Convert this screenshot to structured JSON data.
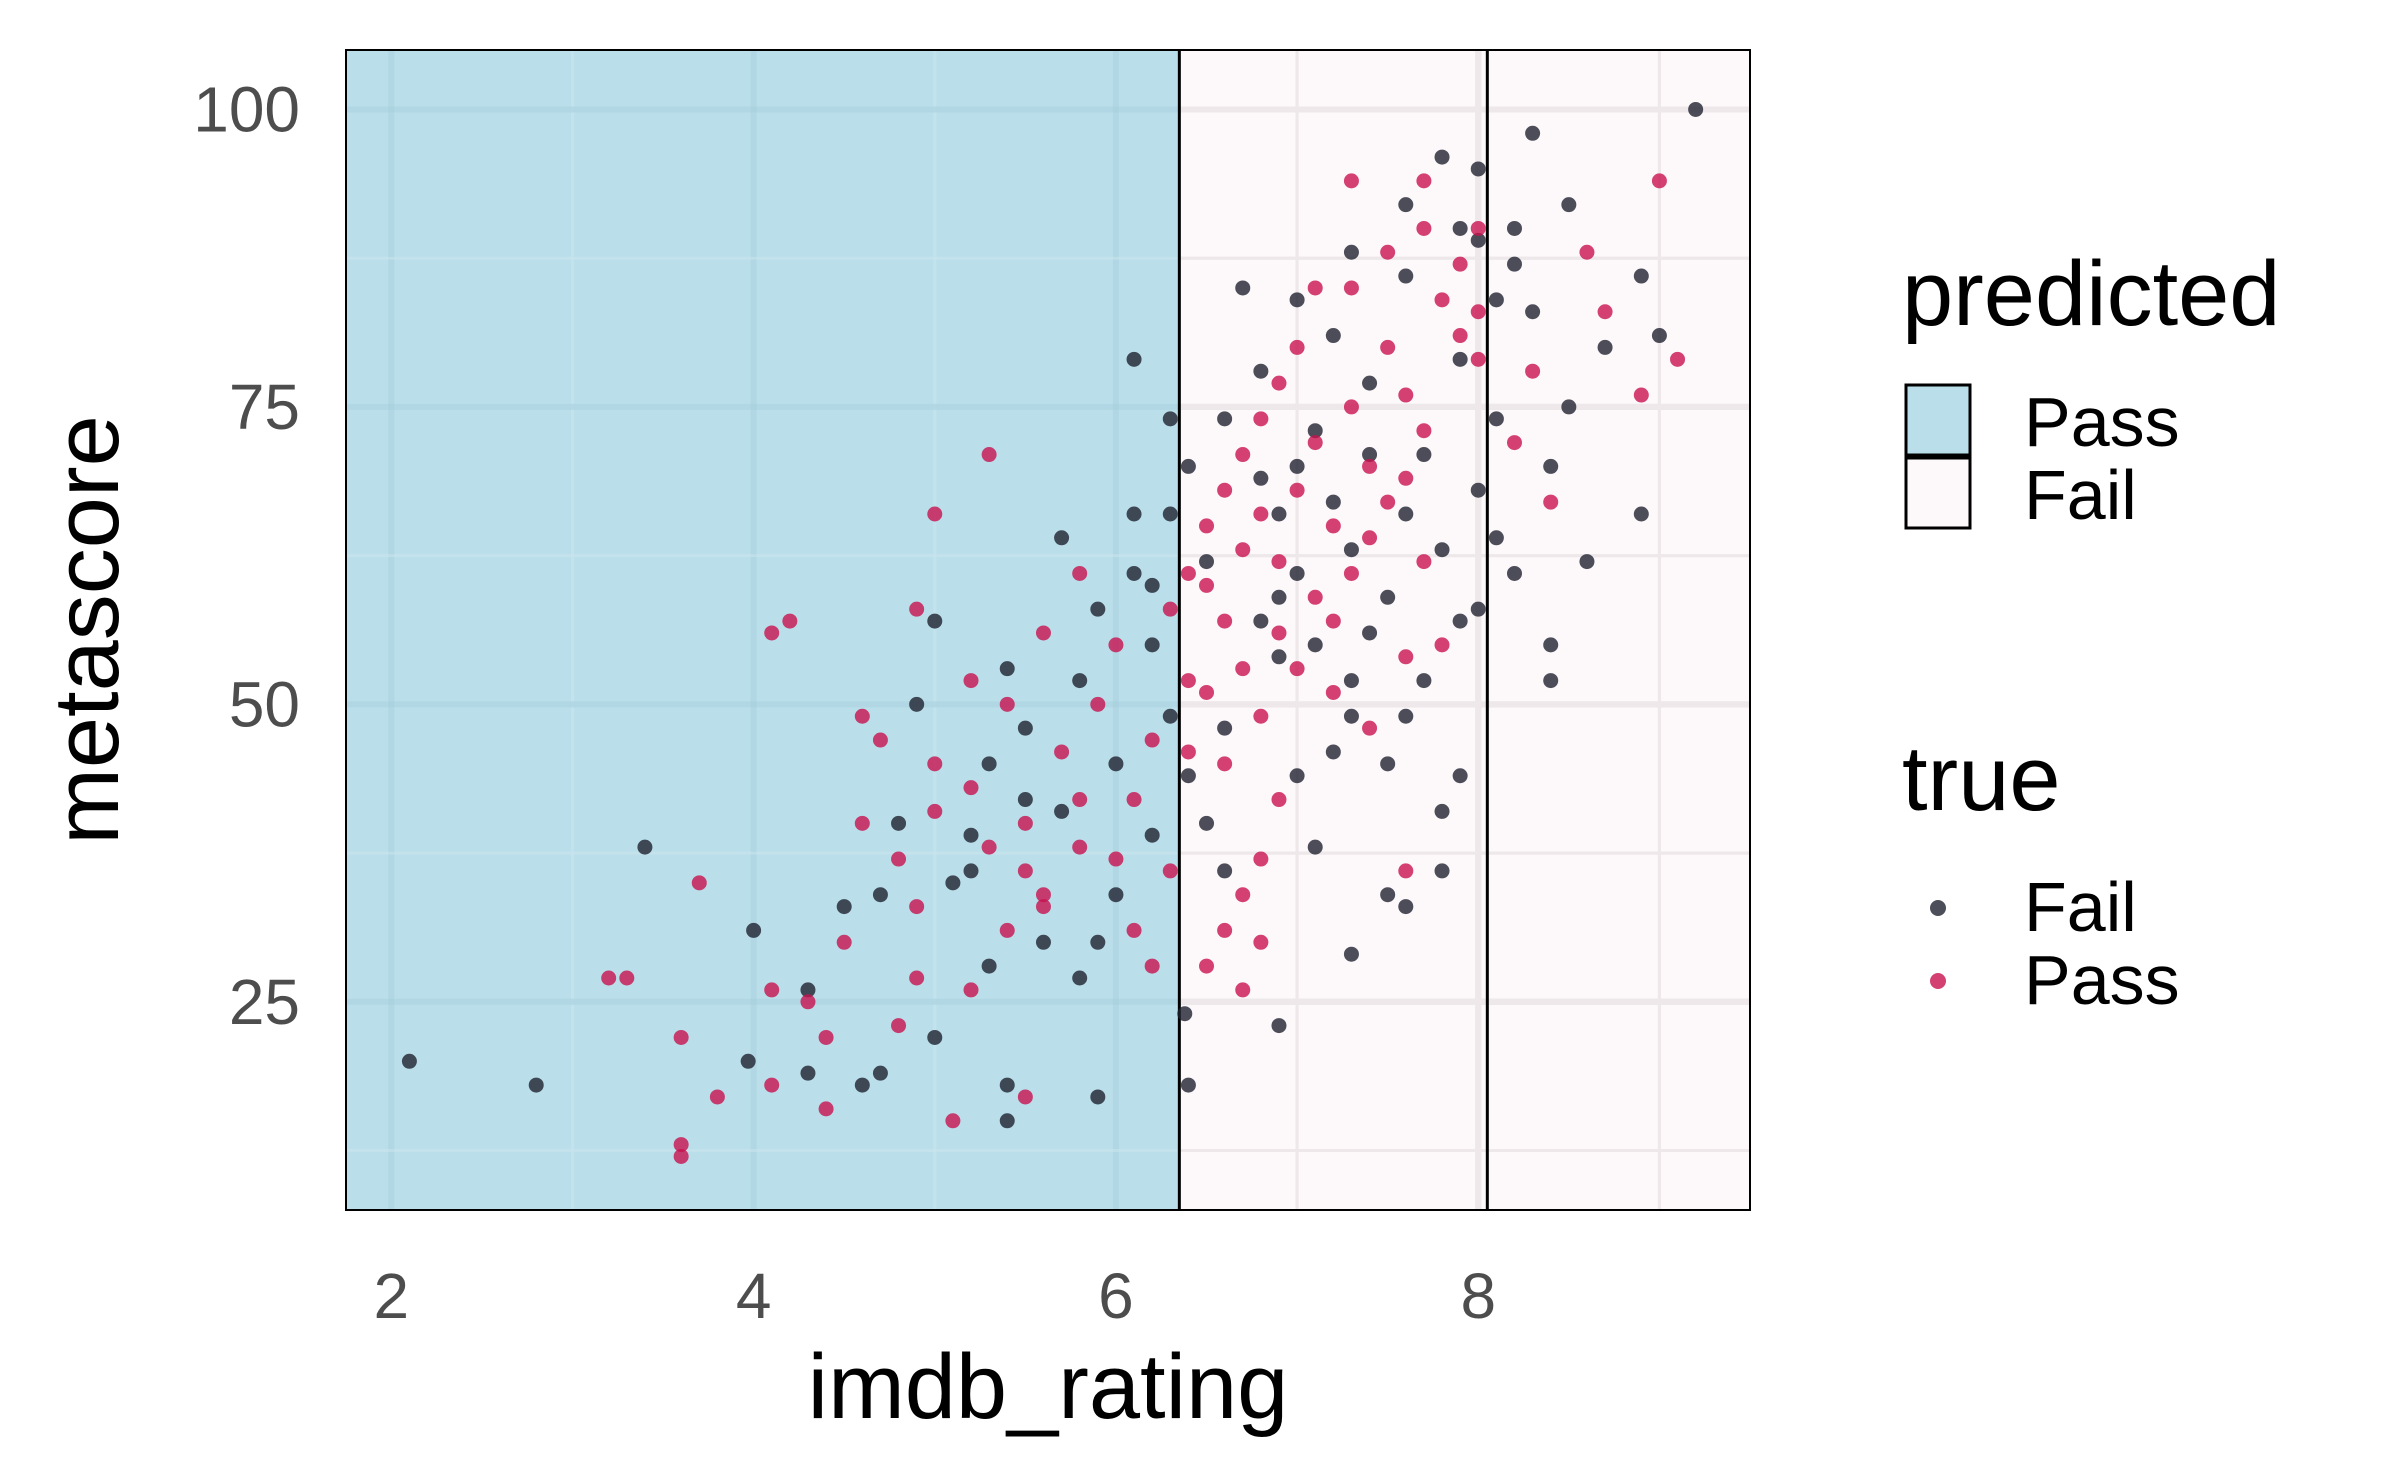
{
  "chart_data": {
    "type": "scatter",
    "xlabel": "imdb_rating",
    "ylabel": "metascore",
    "xlim": [
      1.75,
      9.5
    ],
    "ylim": [
      7.5,
      105
    ],
    "xticks": [
      2,
      4,
      6,
      8
    ],
    "yticks": [
      25,
      50,
      75,
      100
    ],
    "grid": true,
    "legend_position": "right",
    "thresholds": [
      6.35,
      8.05
    ],
    "regions": [
      {
        "label": "Pass",
        "x_from": 1.75,
        "x_to": 6.35,
        "color": "#badfeb"
      },
      {
        "label": "Fail",
        "x_from": 6.35,
        "x_to": 9.5,
        "color": "#fdf8f9"
      }
    ],
    "legend_predicted": {
      "title": "predicted",
      "items": [
        {
          "label": "Pass",
          "color": "#badfeb"
        },
        {
          "label": "Fail",
          "color": "#fdf8f9"
        }
      ]
    },
    "legend_true": {
      "title": "true",
      "items": [
        {
          "label": "Fail",
          "color": "#1f2230"
        },
        {
          "label": "Pass",
          "color": "#c8114f"
        }
      ]
    },
    "series": [
      {
        "name": "Fail",
        "color": "#1f2230",
        "points": [
          [
            2.1,
            20
          ],
          [
            2.8,
            18
          ],
          [
            3.4,
            38
          ],
          [
            4.0,
            31
          ],
          [
            3.97,
            20
          ],
          [
            4.3,
            26
          ],
          [
            4.3,
            19
          ],
          [
            4.6,
            18
          ],
          [
            4.5,
            33
          ],
          [
            4.7,
            19
          ],
          [
            5.0,
            22
          ],
          [
            5.4,
            18
          ],
          [
            5.4,
            15
          ],
          [
            5.9,
            17
          ],
          [
            6.1,
            79
          ],
          [
            6.3,
            74
          ],
          [
            4.9,
            50
          ],
          [
            5.0,
            57
          ],
          [
            6.4,
            18
          ],
          [
            6.38,
            24
          ],
          [
            6.9,
            23
          ],
          [
            7.3,
            29
          ],
          [
            7.5,
            34
          ],
          [
            7.6,
            33
          ],
          [
            7.8,
            36
          ],
          [
            7.9,
            44
          ],
          [
            7.8,
            41
          ],
          [
            8.4,
            52
          ],
          [
            8.4,
            55
          ],
          [
            9.2,
            100
          ],
          [
            8.9,
            86
          ],
          [
            9.0,
            81
          ],
          [
            8.7,
            80
          ],
          [
            8.5,
            75
          ],
          [
            8.9,
            66
          ],
          [
            8.6,
            62
          ],
          [
            8.0,
            95
          ],
          [
            8.3,
            98
          ],
          [
            8.2,
            90
          ],
          [
            8.5,
            92
          ],
          [
            7.8,
            96
          ],
          [
            8.1,
            84
          ],
          [
            4.8,
            40
          ],
          [
            4.7,
            34
          ],
          [
            5.2,
            36
          ],
          [
            5.5,
            42
          ],
          [
            5.7,
            64
          ],
          [
            6.1,
            66
          ],
          [
            5.9,
            58
          ],
          [
            5.6,
            30
          ],
          [
            5.3,
            28
          ],
          [
            5.1,
            35
          ],
          [
            6.0,
            45
          ],
          [
            5.8,
            52
          ],
          [
            6.5,
            62
          ],
          [
            6.6,
            48
          ],
          [
            6.8,
            57
          ],
          [
            6.9,
            66
          ],
          [
            7.0,
            70
          ],
          [
            7.1,
            73
          ],
          [
            7.2,
            81
          ],
          [
            7.3,
            63
          ],
          [
            7.4,
            77
          ],
          [
            7.5,
            59
          ],
          [
            7.6,
            86
          ],
          [
            7.7,
            71
          ],
          [
            7.9,
            79
          ],
          [
            8.0,
            68
          ],
          [
            8.1,
            74
          ],
          [
            8.2,
            61
          ],
          [
            8.3,
            83
          ],
          [
            8.0,
            58
          ],
          [
            6.7,
            85
          ],
          [
            6.9,
            54
          ],
          [
            7.0,
            44
          ],
          [
            7.1,
            38
          ],
          [
            7.2,
            46
          ],
          [
            7.3,
            52
          ],
          [
            7.4,
            56
          ],
          [
            7.6,
            49
          ],
          [
            6.5,
            40
          ],
          [
            6.6,
            36
          ],
          [
            6.4,
            44
          ],
          [
            6.2,
            39
          ],
          [
            6.0,
            34
          ],
          [
            5.9,
            30
          ],
          [
            5.8,
            27
          ],
          [
            5.7,
            41
          ],
          [
            5.5,
            48
          ],
          [
            5.4,
            53
          ],
          [
            5.3,
            45
          ],
          [
            5.2,
            39
          ],
          [
            6.1,
            61
          ],
          [
            6.2,
            55
          ],
          [
            6.3,
            49
          ],
          [
            6.8,
            69
          ],
          [
            7.0,
            61
          ],
          [
            7.2,
            67
          ],
          [
            7.4,
            71
          ],
          [
            7.6,
            66
          ],
          [
            7.8,
            63
          ],
          [
            8.0,
            89
          ],
          [
            8.2,
            87
          ],
          [
            7.9,
            90
          ],
          [
            7.6,
            92
          ],
          [
            7.3,
            88
          ],
          [
            7.0,
            84
          ],
          [
            6.8,
            78
          ],
          [
            6.6,
            74
          ],
          [
            6.4,
            70
          ],
          [
            6.3,
            66
          ],
          [
            6.2,
            60
          ],
          [
            6.9,
            59
          ],
          [
            7.1,
            55
          ],
          [
            7.3,
            49
          ],
          [
            7.5,
            45
          ],
          [
            7.7,
            52
          ],
          [
            7.9,
            57
          ],
          [
            8.1,
            64
          ],
          [
            8.4,
            70
          ]
        ]
      },
      {
        "name": "Pass",
        "color": "#c8114f",
        "points": [
          [
            3.2,
            27
          ],
          [
            3.3,
            27
          ],
          [
            3.6,
            22
          ],
          [
            3.6,
            13
          ],
          [
            3.6,
            12
          ],
          [
            3.7,
            35
          ],
          [
            3.8,
            17
          ],
          [
            4.1,
            56
          ],
          [
            4.2,
            57
          ],
          [
            4.1,
            26
          ],
          [
            4.1,
            18
          ],
          [
            4.4,
            16
          ],
          [
            4.4,
            22
          ],
          [
            4.6,
            40
          ],
          [
            4.6,
            49
          ],
          [
            4.7,
            47
          ],
          [
            4.9,
            58
          ],
          [
            5.0,
            66
          ],
          [
            5.0,
            45
          ],
          [
            5.1,
            15
          ],
          [
            5.2,
            52
          ],
          [
            5.3,
            71
          ],
          [
            5.5,
            17
          ],
          [
            4.9,
            33
          ],
          [
            4.8,
            23
          ],
          [
            4.9,
            27
          ],
          [
            5.2,
            26
          ],
          [
            5.4,
            50
          ],
          [
            5.6,
            56
          ],
          [
            5.8,
            61
          ],
          [
            6.5,
            28
          ],
          [
            6.6,
            31
          ],
          [
            6.7,
            26
          ],
          [
            6.8,
            30
          ],
          [
            7.6,
            36
          ],
          [
            7.8,
            55
          ],
          [
            8.0,
            90
          ],
          [
            8.2,
            72
          ],
          [
            8.3,
            78
          ],
          [
            8.4,
            67
          ],
          [
            8.9,
            76
          ],
          [
            8.7,
            83
          ],
          [
            8.6,
            88
          ],
          [
            9.0,
            94
          ],
          [
            9.1,
            79
          ],
          [
            8.0,
            83
          ],
          [
            7.7,
            94
          ],
          [
            7.3,
            94
          ],
          [
            5.5,
            40
          ],
          [
            5.6,
            34
          ],
          [
            5.7,
            46
          ],
          [
            5.8,
            38
          ],
          [
            5.9,
            50
          ],
          [
            6.0,
            55
          ],
          [
            6.1,
            42
          ],
          [
            6.2,
            47
          ],
          [
            6.3,
            58
          ],
          [
            6.4,
            52
          ],
          [
            6.5,
            60
          ],
          [
            6.6,
            57
          ],
          [
            6.7,
            63
          ],
          [
            6.8,
            66
          ],
          [
            6.9,
            62
          ],
          [
            7.0,
            68
          ],
          [
            7.1,
            72
          ],
          [
            7.2,
            65
          ],
          [
            7.3,
            75
          ],
          [
            7.4,
            70
          ],
          [
            7.5,
            80
          ],
          [
            7.6,
            76
          ],
          [
            7.7,
            73
          ],
          [
            7.8,
            84
          ],
          [
            7.9,
            81
          ],
          [
            8.0,
            79
          ],
          [
            6.4,
            46
          ],
          [
            6.5,
            51
          ],
          [
            6.6,
            45
          ],
          [
            6.7,
            53
          ],
          [
            6.8,
            49
          ],
          [
            6.9,
            56
          ],
          [
            7.0,
            53
          ],
          [
            7.1,
            59
          ],
          [
            7.2,
            57
          ],
          [
            7.3,
            61
          ],
          [
            7.4,
            64
          ],
          [
            7.5,
            67
          ],
          [
            7.6,
            69
          ],
          [
            7.7,
            62
          ],
          [
            5.2,
            43
          ],
          [
            5.3,
            38
          ],
          [
            5.4,
            31
          ],
          [
            5.5,
            36
          ],
          [
            5.6,
            33
          ],
          [
            5.8,
            42
          ],
          [
            6.0,
            37
          ],
          [
            6.1,
            31
          ],
          [
            6.2,
            28
          ],
          [
            6.3,
            36
          ],
          [
            6.9,
            77
          ],
          [
            7.0,
            80
          ],
          [
            7.1,
            85
          ],
          [
            7.3,
            85
          ],
          [
            7.5,
            88
          ],
          [
            7.7,
            90
          ],
          [
            7.9,
            87
          ],
          [
            6.7,
            71
          ],
          [
            6.8,
            74
          ],
          [
            6.6,
            68
          ],
          [
            6.5,
            65
          ],
          [
            6.4,
            61
          ],
          [
            7.2,
            51
          ],
          [
            7.4,
            48
          ],
          [
            7.6,
            54
          ],
          [
            6.9,
            42
          ],
          [
            6.8,
            37
          ],
          [
            6.7,
            34
          ],
          [
            4.5,
            30
          ],
          [
            4.3,
            25
          ],
          [
            4.8,
            37
          ],
          [
            5.0,
            41
          ]
        ]
      }
    ]
  }
}
